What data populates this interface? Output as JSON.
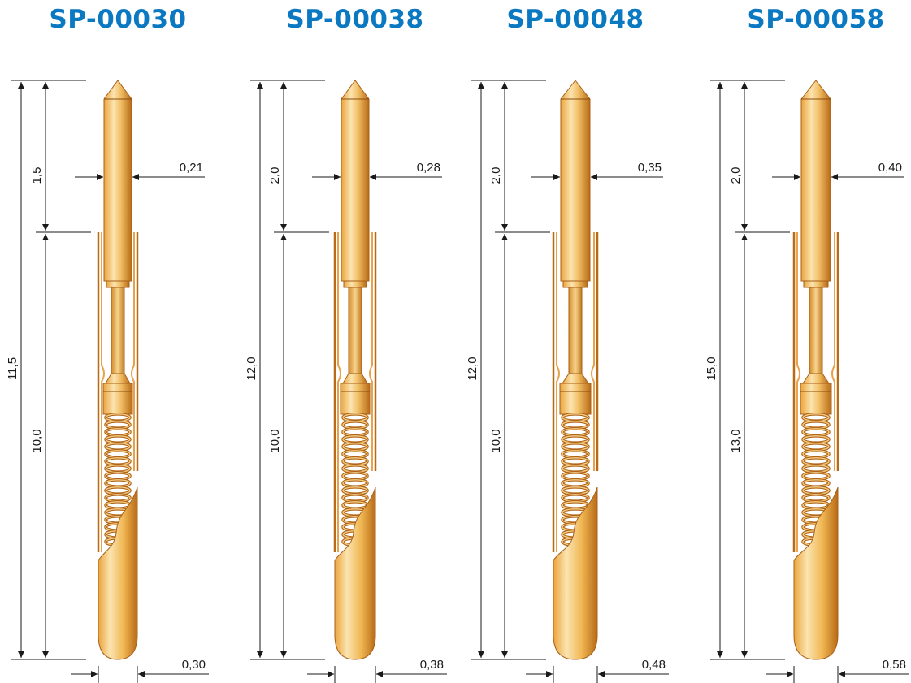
{
  "probes": [
    {
      "model": "SP-00030",
      "total_length": "11,5",
      "tip_length": "1,5",
      "barrel_length": "10,0",
      "plunger_diameter": "0,21",
      "barrel_diameter": "0,30"
    },
    {
      "model": "SP-00038",
      "total_length": "12,0",
      "tip_length": "2,0",
      "barrel_length": "10,0",
      "plunger_diameter": "0,28",
      "barrel_diameter": "0,38"
    },
    {
      "model": "SP-00048",
      "total_length": "12,0",
      "tip_length": "2,0",
      "barrel_length": "10,0",
      "plunger_diameter": "0,35",
      "barrel_diameter": "0,48"
    },
    {
      "model": "SP-00058",
      "total_length": "15,0",
      "tip_length": "2,0",
      "barrel_length": "13,0",
      "plunger_diameter": "0,40",
      "barrel_diameter": "0,58"
    }
  ],
  "colors": {
    "title": "#0b79c2",
    "gold_light": "#fbe4b0",
    "gold_mid": "#eba43c",
    "gold_dark": "#b86a16",
    "line": "#1a1a1a"
  }
}
